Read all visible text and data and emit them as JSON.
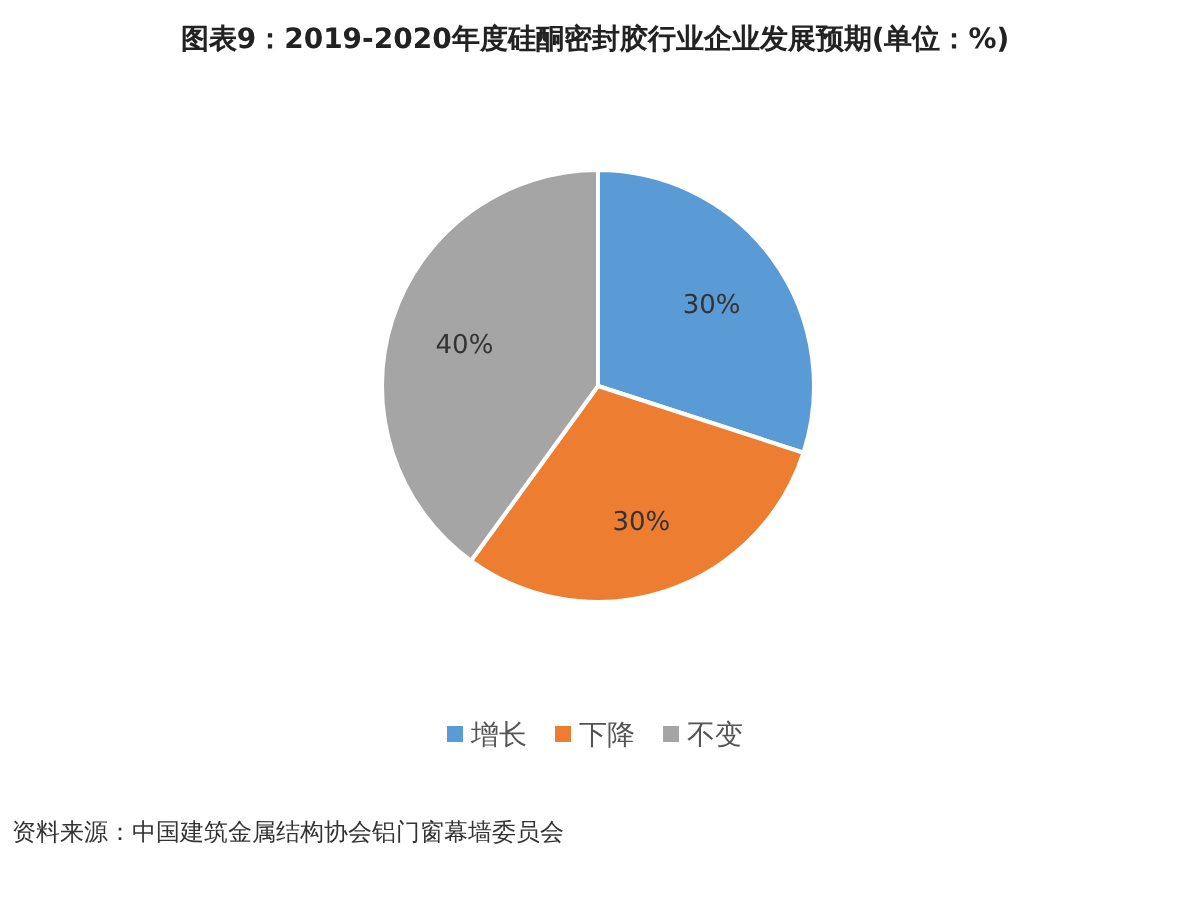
{
  "chart_data": {
    "type": "pie",
    "title": "图表9：2019-2020年度硅酮密封胶行业企业发展预期(单位：%)",
    "categories": [
      "增长",
      "下降",
      "不变"
    ],
    "values": [
      30,
      30,
      40
    ],
    "colors": [
      "#5b9bd5",
      "#ed7d31",
      "#a5a5a5"
    ],
    "value_labels": [
      "30%",
      "30%",
      "40%"
    ],
    "legend": "bottom",
    "annotations": [
      "资料来源：中国建筑金属结构协会铝门窗幕墙委员会"
    ]
  }
}
